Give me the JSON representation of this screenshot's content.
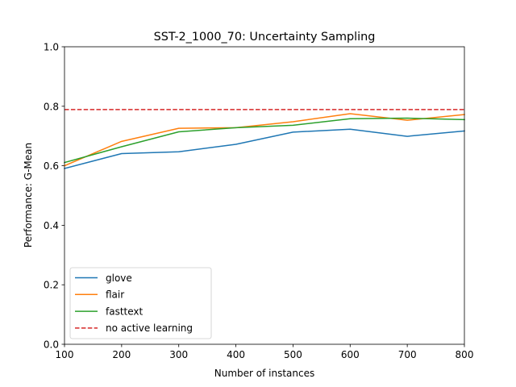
{
  "chart_data": {
    "type": "line",
    "title": "SST-2_1000_70: Uncertainty Sampling",
    "xlabel": "Number of instances",
    "ylabel": "Performance: G-Mean",
    "xlim": [
      100,
      800
    ],
    "ylim": [
      0.0,
      1.0
    ],
    "xticks": [
      100,
      200,
      300,
      400,
      500,
      600,
      700,
      800
    ],
    "xtick_labels": [
      "100",
      "200",
      "300",
      "400",
      "500",
      "600",
      "700",
      "800"
    ],
    "yticks": [
      0.0,
      0.2,
      0.4,
      0.6,
      0.8,
      1.0
    ],
    "ytick_labels": [
      "0.0",
      "0.2",
      "0.4",
      "0.6",
      "0.8",
      "1.0"
    ],
    "grid": false,
    "legend_position": "lower-left",
    "x": [
      100,
      200,
      300,
      400,
      500,
      600,
      700,
      800
    ],
    "series": [
      {
        "name": "glove",
        "color": "#1f77b4",
        "style": "solid",
        "values": [
          0.591,
          0.641,
          0.647,
          0.672,
          0.713,
          0.723,
          0.699,
          0.717
        ]
      },
      {
        "name": "flair",
        "color": "#ff7f0e",
        "style": "solid",
        "values": [
          0.6,
          0.682,
          0.726,
          0.728,
          0.748,
          0.775,
          0.753,
          0.772
        ]
      },
      {
        "name": "fasttext",
        "color": "#2ca02c",
        "style": "solid",
        "values": [
          0.611,
          0.664,
          0.714,
          0.728,
          0.736,
          0.758,
          0.76,
          0.755
        ]
      }
    ],
    "baseline": {
      "name": "no active learning",
      "color": "#d62728",
      "style": "dashed",
      "value": 0.789
    }
  }
}
